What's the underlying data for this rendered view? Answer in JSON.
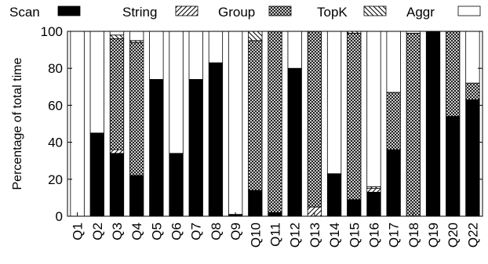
{
  "chart_data": {
    "type": "bar",
    "stacked": true,
    "ylabel": "Percentage of total time",
    "ylim": [
      0,
      100
    ],
    "yticks": [
      "0",
      "20",
      "40",
      "60",
      "80",
      "100"
    ],
    "grid": false,
    "legend_position": "top",
    "categories": [
      "Q1",
      "Q2",
      "Q3",
      "Q4",
      "Q5",
      "Q6",
      "Q7",
      "Q8",
      "Q9",
      "Q10",
      "Q11",
      "Q12",
      "Q13",
      "Q14",
      "Q15",
      "Q16",
      "Q17",
      "Q18",
      "Q19",
      "Q20",
      "Q22"
    ],
    "series": [
      {
        "name": "Scan",
        "pattern": "solid",
        "values": [
          0,
          45,
          34,
          22,
          74,
          34,
          74,
          83,
          1,
          14,
          2,
          80,
          0,
          23,
          9,
          13,
          36,
          0,
          100,
          54,
          63
        ]
      },
      {
        "name": "String",
        "pattern": "diagonal",
        "values": [
          0,
          0,
          2,
          0,
          0,
          0,
          0,
          0,
          0,
          0,
          0,
          0,
          5,
          0,
          0,
          2,
          0,
          0,
          0,
          0,
          0
        ]
      },
      {
        "name": "Group",
        "pattern": "crosshatch",
        "values": [
          0,
          0,
          60,
          72,
          0,
          0,
          0,
          0,
          0,
          81,
          98,
          0,
          95,
          0,
          90,
          0,
          31,
          99,
          0,
          46,
          9
        ]
      },
      {
        "name": "TopK",
        "pattern": "backslash",
        "values": [
          0,
          0,
          2,
          1,
          0,
          0,
          0,
          0,
          0,
          5,
          0,
          0,
          0,
          0,
          1,
          1,
          0,
          0,
          0,
          0,
          0
        ]
      },
      {
        "name": "Aggr",
        "pattern": "empty",
        "values": [
          100,
          55,
          2,
          5,
          26,
          66,
          26,
          17,
          99,
          0,
          0,
          20,
          0,
          77,
          0,
          84,
          33,
          1,
          0,
          0,
          28
        ]
      }
    ]
  }
}
